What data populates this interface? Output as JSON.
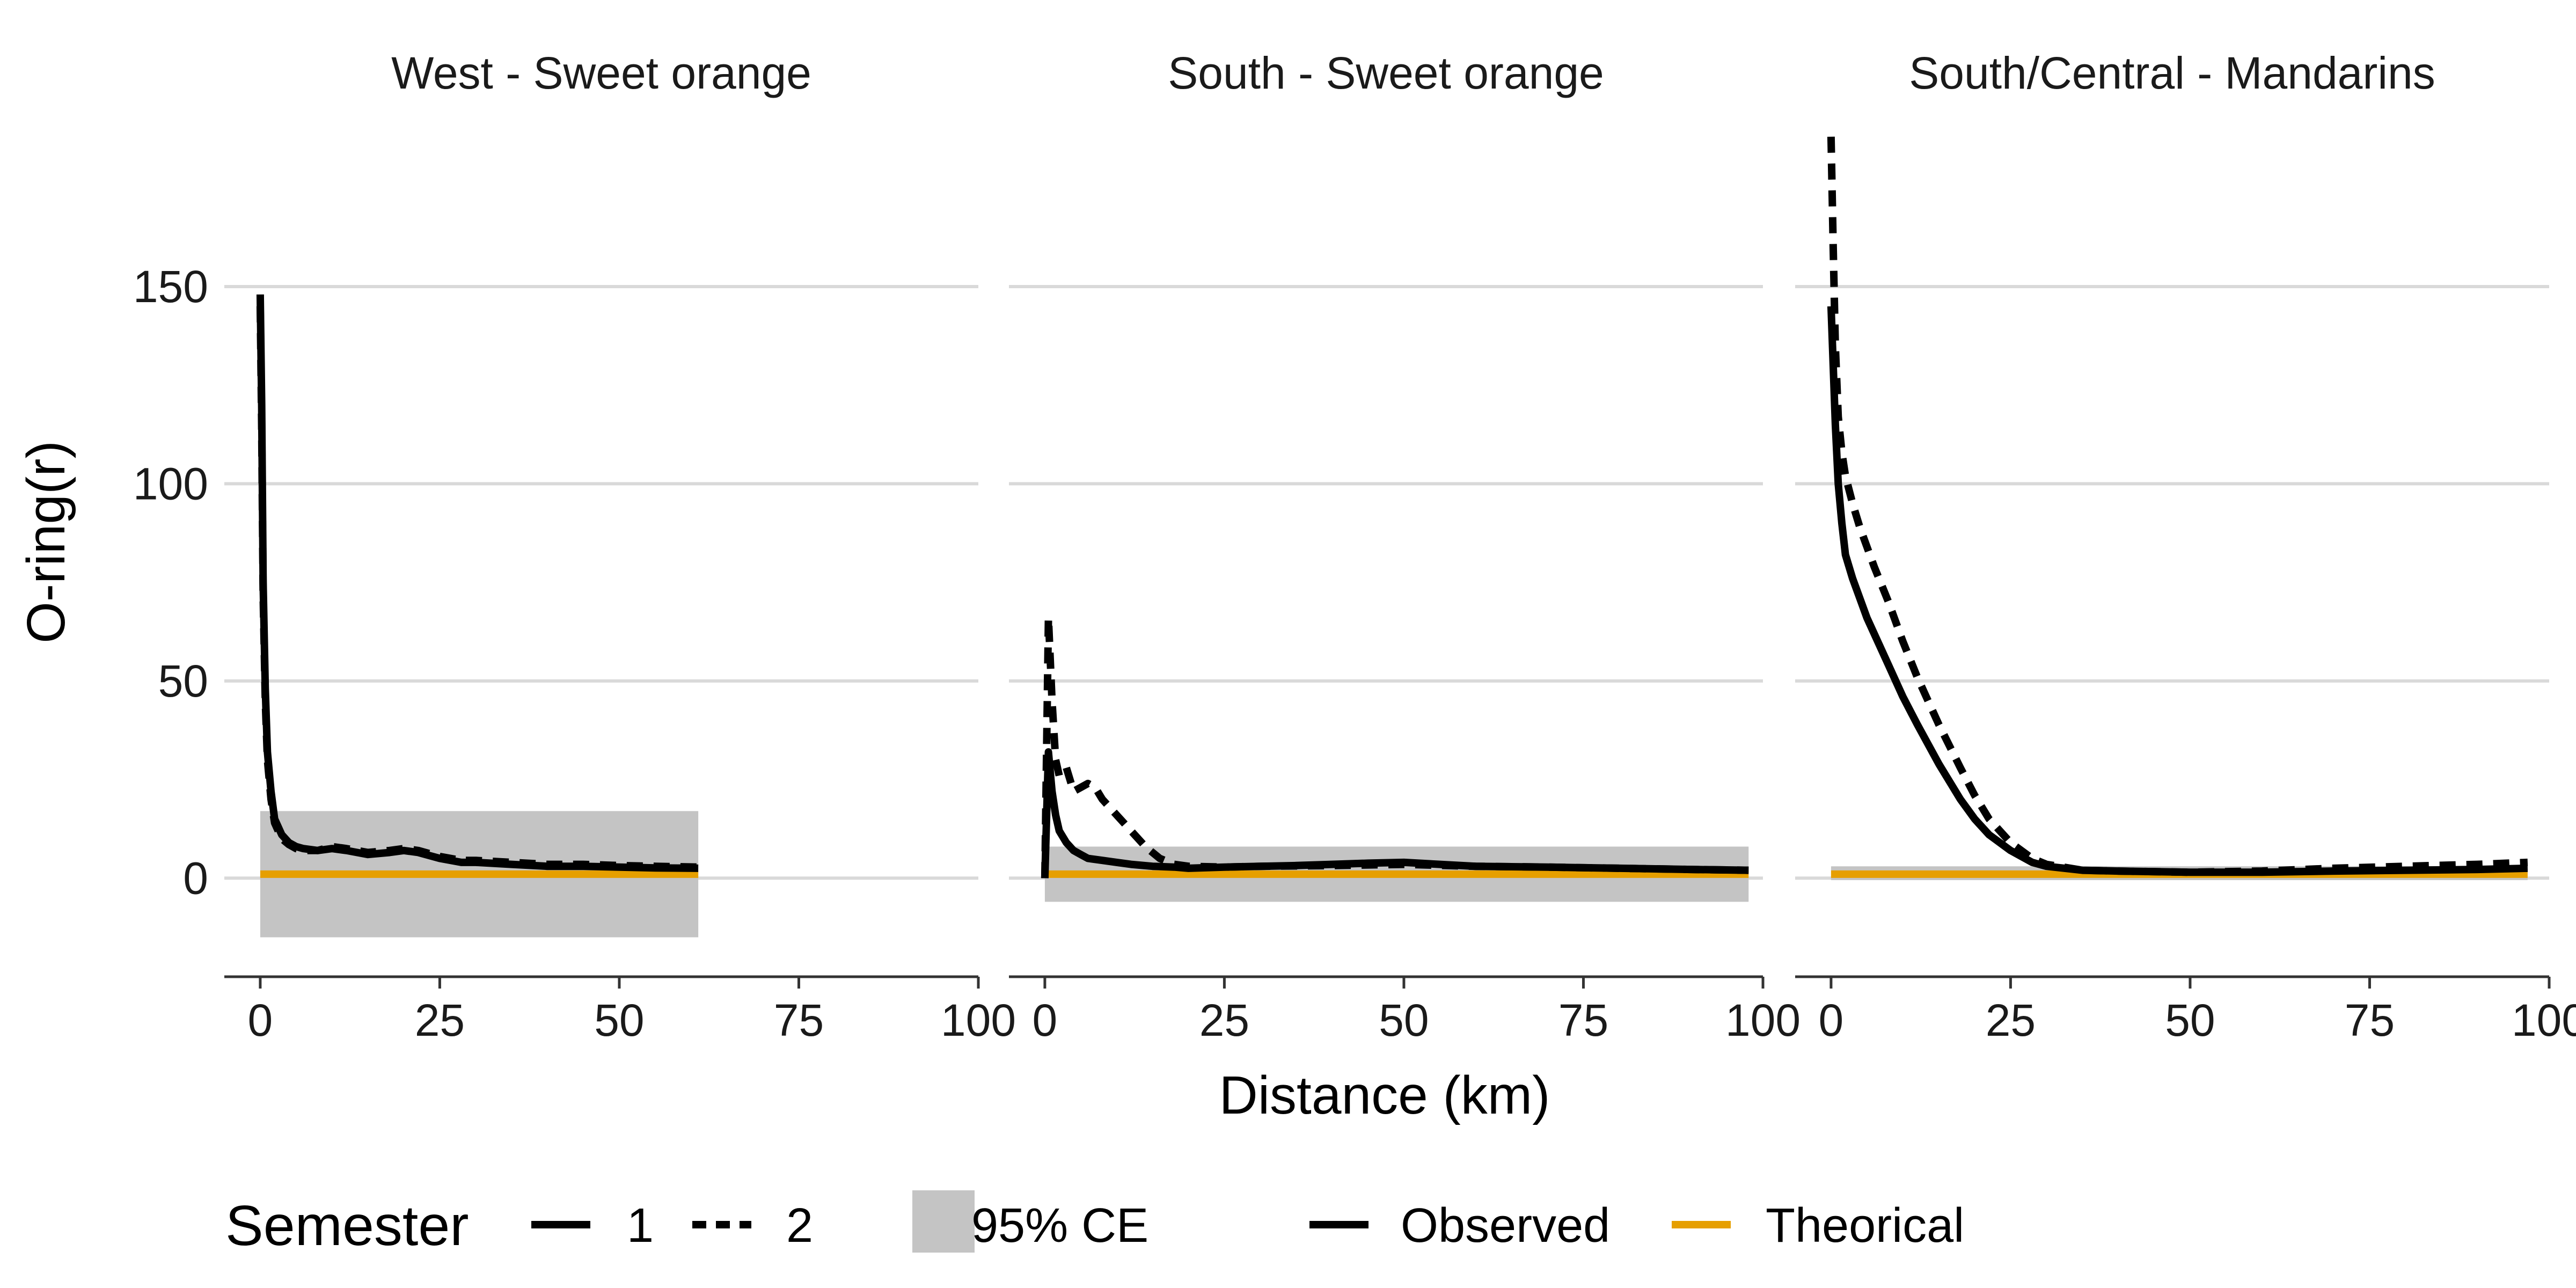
{
  "chart_data": {
    "type": "line",
    "xlabel": "Distance (km)",
    "ylabel": "O-ring(r)",
    "xlim": [
      -5,
      100
    ],
    "ylim": [
      -25,
      190
    ],
    "x_ticks": [
      0,
      25,
      50,
      75,
      100
    ],
    "y_ticks": [
      0,
      50,
      100,
      150
    ],
    "grid": true,
    "legend_position": "bottom",
    "colors": {
      "observed": "#000000",
      "theorical": "#E69F00",
      "envelope": "#c4c4c4",
      "grid": "#d9d9d9"
    },
    "legend": {
      "semester_title": "Semester",
      "semester_1": "1",
      "semester_2": "2",
      "envelope_label": "95% CE",
      "observed_label": "Observed",
      "theorical_label": "Theorical"
    },
    "panels": [
      {
        "title": "West - Sweet orange",
        "envelope": {
          "x": [
            0,
            61
          ],
          "lower": -15,
          "upper": 17
        },
        "theoretical": 1,
        "series": [
          {
            "semester": "1",
            "x": [
              0,
              0.2,
              0.4,
              0.7,
              1,
              1.5,
              2,
              3,
              4,
              5,
              6,
              8,
              10,
              12,
              15,
              18,
              20,
              22,
              25,
              28,
              30,
              35,
              40,
              45,
              50,
              55,
              61
            ],
            "y": [
              148,
              120,
              75,
              48,
              32,
              22,
              15,
              11,
              9,
              8,
              7.5,
              7,
              7.5,
              7,
              6,
              6.5,
              7,
              6.5,
              5,
              4,
              4,
              3.5,
              3,
              3,
              2.8,
              2.6,
              2.5
            ]
          },
          {
            "semester": "2",
            "x": [
              0,
              0.2,
              0.4,
              0.7,
              1,
              1.5,
              2,
              3,
              4,
              5,
              6,
              8,
              10,
              12,
              15,
              18,
              20,
              22,
              25,
              28,
              30,
              35,
              40,
              45,
              50,
              55,
              61
            ],
            "y": [
              145,
              115,
              72,
              45,
              30,
              20,
              14,
              10,
              8.5,
              7.5,
              7,
              7,
              8,
              7.5,
              6.5,
              7,
              7.5,
              7,
              5.5,
              4.5,
              4.5,
              4,
              3.5,
              3.5,
              3.2,
              3,
              2.8
            ]
          }
        ]
      },
      {
        "title": "South - Sweet orange",
        "envelope": {
          "x": [
            0,
            98
          ],
          "lower": -6,
          "upper": 8
        },
        "theoretical": 1,
        "series": [
          {
            "semester": "1",
            "x": [
              0,
              0.5,
              1,
              1.5,
              2,
              3,
              4,
              5,
              6,
              8,
              10,
              12,
              15,
              18,
              20,
              25,
              30,
              35,
              40,
              45,
              50,
              55,
              60,
              70,
              80,
              90,
              98
            ],
            "y": [
              0,
              32,
              22,
              16,
              12,
              9,
              7,
              6,
              5,
              4.5,
              4,
              3.5,
              3,
              2.8,
              2.5,
              2.8,
              3,
              3.2,
              3.5,
              3.8,
              4,
              3.5,
              3,
              2.8,
              2.5,
              2.2,
              2
            ]
          },
          {
            "semester": "2",
            "x": [
              0,
              0.5,
              1,
              1.5,
              2,
              3,
              4,
              5,
              6,
              7,
              8,
              10,
              12,
              14,
              16,
              18,
              20,
              25,
              30,
              40,
              50,
              60,
              70,
              80,
              90,
              98
            ],
            "y": [
              0,
              66,
              45,
              30,
              26,
              28,
              22,
              23,
              24,
              23,
              20,
              16,
              12,
              8,
              5,
              3.5,
              3,
              2.8,
              3,
              3.2,
              3.5,
              3,
              2.8,
              2.5,
              2.2,
              2
            ]
          }
        ]
      },
      {
        "title": "South/Central - Mandarins",
        "envelope": {
          "x": [
            0,
            97
          ],
          "lower": -0.5,
          "upper": 3
        },
        "theoretical": 1,
        "series": [
          {
            "semester": "1",
            "x": [
              0,
              0.3,
              0.6,
              1,
              1.5,
              2,
              3,
              4,
              5,
              6,
              8,
              10,
              12,
              15,
              18,
              20,
              22,
              25,
              28,
              30,
              35,
              40,
              50,
              60,
              70,
              80,
              90,
              97
            ],
            "y": [
              145,
              130,
              115,
              100,
              90,
              82,
              76,
              71,
              66,
              62,
              54,
              46,
              39,
              29,
              20,
              15,
              11,
              7,
              4,
              3,
              2,
              1.8,
              1.5,
              1.5,
              1.8,
              2,
              2.2,
              2.5
            ]
          },
          {
            "semester": "2",
            "x": [
              0,
              0.3,
              0.6,
              1,
              1.5,
              2,
              3,
              4,
              5,
              6,
              8,
              10,
              12,
              15,
              18,
              20,
              22,
              25,
              28,
              30,
              35,
              40,
              50,
              60,
              70,
              80,
              90,
              97
            ],
            "y": [
              188,
              160,
              135,
              117,
              108,
              102,
              95,
              89,
              84,
              79,
              70,
              60,
              51,
              39,
              28,
              21,
              15,
              9,
              5,
              3.5,
              2,
              1.8,
              1.5,
              1.8,
              2.5,
              3,
              3.5,
              4
            ]
          }
        ]
      }
    ]
  }
}
